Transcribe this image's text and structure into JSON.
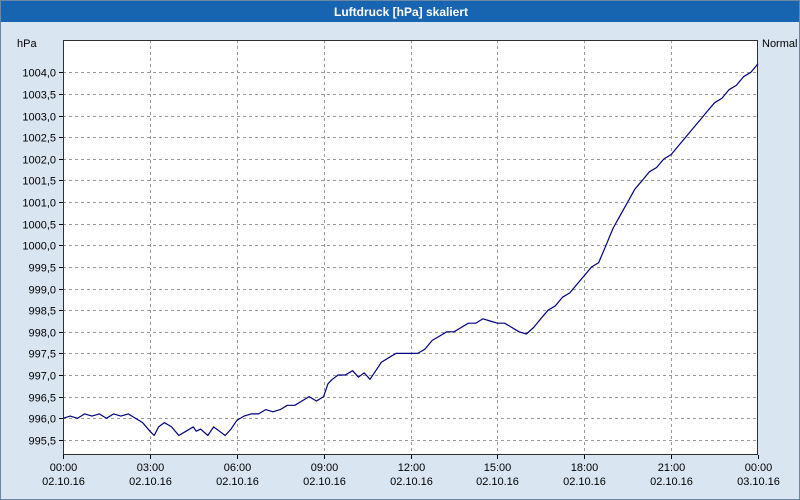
{
  "window": {
    "title": "Luftdruck [hPa] skaliert"
  },
  "colors": {
    "titlebar": "#1765b0",
    "background": "#d9e5f1",
    "plot_bg": "#ffffff",
    "plot_border": "#303030",
    "grid": "#9a9a9a",
    "line": "#000080",
    "title_text": "#ffffff",
    "tick_text": "#000000"
  },
  "chart_data": {
    "type": "line",
    "title": "Luftdruck [hPa] skaliert",
    "xlabel": "",
    "ylabel": "hPa",
    "series_label": "Normal",
    "grid": "dashed",
    "xlim": [
      0,
      24
    ],
    "ylim": [
      995.15,
      1004.75
    ],
    "y_ticks": [
      {
        "value": 1004.0,
        "label": "1004,0"
      },
      {
        "value": 1003.5,
        "label": "1003,5"
      },
      {
        "value": 1003.0,
        "label": "1003,0"
      },
      {
        "value": 1002.5,
        "label": "1002,5"
      },
      {
        "value": 1002.0,
        "label": "1002,0"
      },
      {
        "value": 1001.5,
        "label": "1001,5"
      },
      {
        "value": 1001.0,
        "label": "1001,0"
      },
      {
        "value": 1000.5,
        "label": "1000,5"
      },
      {
        "value": 1000.0,
        "label": "1000,0"
      },
      {
        "value": 999.5,
        "label": "999,5"
      },
      {
        "value": 999.0,
        "label": "999,0"
      },
      {
        "value": 998.5,
        "label": "998,5"
      },
      {
        "value": 998.0,
        "label": "998,0"
      },
      {
        "value": 997.5,
        "label": "997,5"
      },
      {
        "value": 997.0,
        "label": "997,0"
      },
      {
        "value": 996.5,
        "label": "996,5"
      },
      {
        "value": 996.0,
        "label": "996,0"
      },
      {
        "value": 995.5,
        "label": "995,5"
      }
    ],
    "x_ticks": [
      {
        "hour": 0,
        "time": "00:00",
        "date": "02.10.16"
      },
      {
        "hour": 3,
        "time": "03:00",
        "date": "02.10.16"
      },
      {
        "hour": 6,
        "time": "06:00",
        "date": "02.10.16"
      },
      {
        "hour": 9,
        "time": "09:00",
        "date": "02.10.16"
      },
      {
        "hour": 12,
        "time": "12:00",
        "date": "02.10.16"
      },
      {
        "hour": 15,
        "time": "15:00",
        "date": "02.10.16"
      },
      {
        "hour": 18,
        "time": "18:00",
        "date": "02.10.16"
      },
      {
        "hour": 21,
        "time": "21:00",
        "date": "02.10.16"
      },
      {
        "hour": 24,
        "time": "00:00",
        "date": "03.10.16"
      }
    ],
    "series": [
      {
        "name": "Normal",
        "color": "#000080",
        "points": [
          [
            0,
            996.0
          ],
          [
            0.25,
            996.05
          ],
          [
            0.5,
            996.0
          ],
          [
            0.75,
            996.1
          ],
          [
            1,
            996.05
          ],
          [
            1.25,
            996.1
          ],
          [
            1.5,
            996.0
          ],
          [
            1.75,
            996.1
          ],
          [
            2,
            996.05
          ],
          [
            2.25,
            996.1
          ],
          [
            2.5,
            996.0
          ],
          [
            2.75,
            995.9
          ],
          [
            3,
            995.7
          ],
          [
            3.15,
            995.6
          ],
          [
            3.3,
            995.8
          ],
          [
            3.5,
            995.9
          ],
          [
            3.75,
            995.8
          ],
          [
            4,
            995.6
          ],
          [
            4.25,
            995.7
          ],
          [
            4.5,
            995.8
          ],
          [
            4.6,
            995.7
          ],
          [
            4.75,
            995.75
          ],
          [
            5,
            995.6
          ],
          [
            5.2,
            995.8
          ],
          [
            5.4,
            995.7
          ],
          [
            5.6,
            995.6
          ],
          [
            5.8,
            995.75
          ],
          [
            6,
            995.95
          ],
          [
            6.25,
            996.05
          ],
          [
            6.5,
            996.1
          ],
          [
            6.75,
            996.1
          ],
          [
            7,
            996.2
          ],
          [
            7.25,
            996.15
          ],
          [
            7.5,
            996.2
          ],
          [
            7.75,
            996.3
          ],
          [
            8,
            996.3
          ],
          [
            8.25,
            996.4
          ],
          [
            8.5,
            996.5
          ],
          [
            8.75,
            996.4
          ],
          [
            9,
            996.5
          ],
          [
            9.15,
            996.8
          ],
          [
            9.3,
            996.9
          ],
          [
            9.5,
            997.0
          ],
          [
            9.75,
            997.0
          ],
          [
            10,
            997.1
          ],
          [
            10.2,
            996.95
          ],
          [
            10.4,
            997.05
          ],
          [
            10.6,
            996.9
          ],
          [
            10.8,
            997.1
          ],
          [
            11,
            997.3
          ],
          [
            11.25,
            997.4
          ],
          [
            11.5,
            997.5
          ],
          [
            11.75,
            997.5
          ],
          [
            12,
            997.5
          ],
          [
            12.25,
            997.5
          ],
          [
            12.5,
            997.6
          ],
          [
            12.75,
            997.8
          ],
          [
            13,
            997.9
          ],
          [
            13.25,
            998.0
          ],
          [
            13.5,
            998.0
          ],
          [
            13.75,
            998.1
          ],
          [
            14,
            998.2
          ],
          [
            14.25,
            998.2
          ],
          [
            14.5,
            998.3
          ],
          [
            14.75,
            998.25
          ],
          [
            15,
            998.2
          ],
          [
            15.25,
            998.2
          ],
          [
            15.5,
            998.1
          ],
          [
            15.75,
            998.0
          ],
          [
            16,
            997.95
          ],
          [
            16.25,
            998.1
          ],
          [
            16.5,
            998.3
          ],
          [
            16.75,
            998.5
          ],
          [
            17,
            998.6
          ],
          [
            17.25,
            998.8
          ],
          [
            17.5,
            998.9
          ],
          [
            17.75,
            999.1
          ],
          [
            18,
            999.3
          ],
          [
            18.25,
            999.5
          ],
          [
            18.5,
            999.6
          ],
          [
            18.75,
            1000.0
          ],
          [
            19,
            1000.4
          ],
          [
            19.25,
            1000.7
          ],
          [
            19.5,
            1001.0
          ],
          [
            19.75,
            1001.3
          ],
          [
            20,
            1001.5
          ],
          [
            20.25,
            1001.7
          ],
          [
            20.5,
            1001.8
          ],
          [
            20.75,
            1002.0
          ],
          [
            21,
            1002.1
          ],
          [
            21.25,
            1002.3
          ],
          [
            21.5,
            1002.5
          ],
          [
            21.75,
            1002.7
          ],
          [
            22,
            1002.9
          ],
          [
            22.25,
            1003.1
          ],
          [
            22.5,
            1003.3
          ],
          [
            22.75,
            1003.4
          ],
          [
            23,
            1003.6
          ],
          [
            23.25,
            1003.7
          ],
          [
            23.5,
            1003.9
          ],
          [
            23.75,
            1004.0
          ],
          [
            24,
            1004.2
          ]
        ]
      }
    ]
  }
}
